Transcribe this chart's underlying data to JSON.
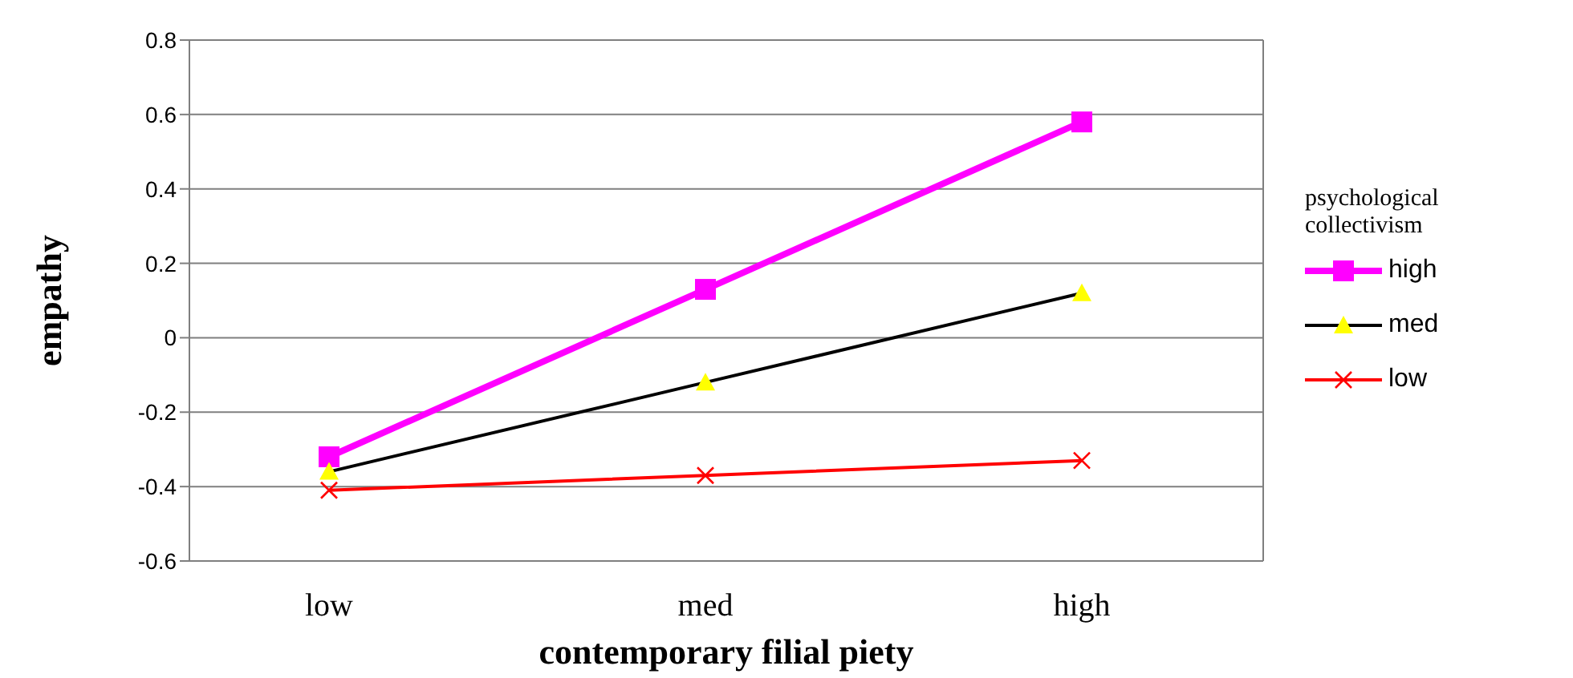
{
  "chart_data": {
    "type": "line",
    "xlabel": "contemporary filial piety",
    "ylabel": "empathy",
    "legend_title": "psychological collectivism",
    "categories": [
      "low",
      "med",
      "high"
    ],
    "series": [
      {
        "name": "high",
        "color": "#ff00ff",
        "marker": "square",
        "values": [
          -0.32,
          0.13,
          0.58
        ]
      },
      {
        "name": "med",
        "color": "#000000",
        "colors": [
          "#ffff00",
          "#ffff00",
          "#ffff00"
        ],
        "marker": "triangle",
        "values": [
          -0.36,
          -0.12,
          0.12
        ]
      },
      {
        "name": "low",
        "color": "#ff0000",
        "marker": "cross",
        "values": [
          -0.41,
          -0.37,
          -0.33
        ]
      }
    ],
    "ylim": [
      -0.6,
      0.8
    ],
    "yticks": [
      -0.6,
      -0.4,
      -0.2,
      0,
      0.2,
      0.4,
      0.6,
      0.8
    ],
    "grid": "y",
    "legend": "right"
  }
}
